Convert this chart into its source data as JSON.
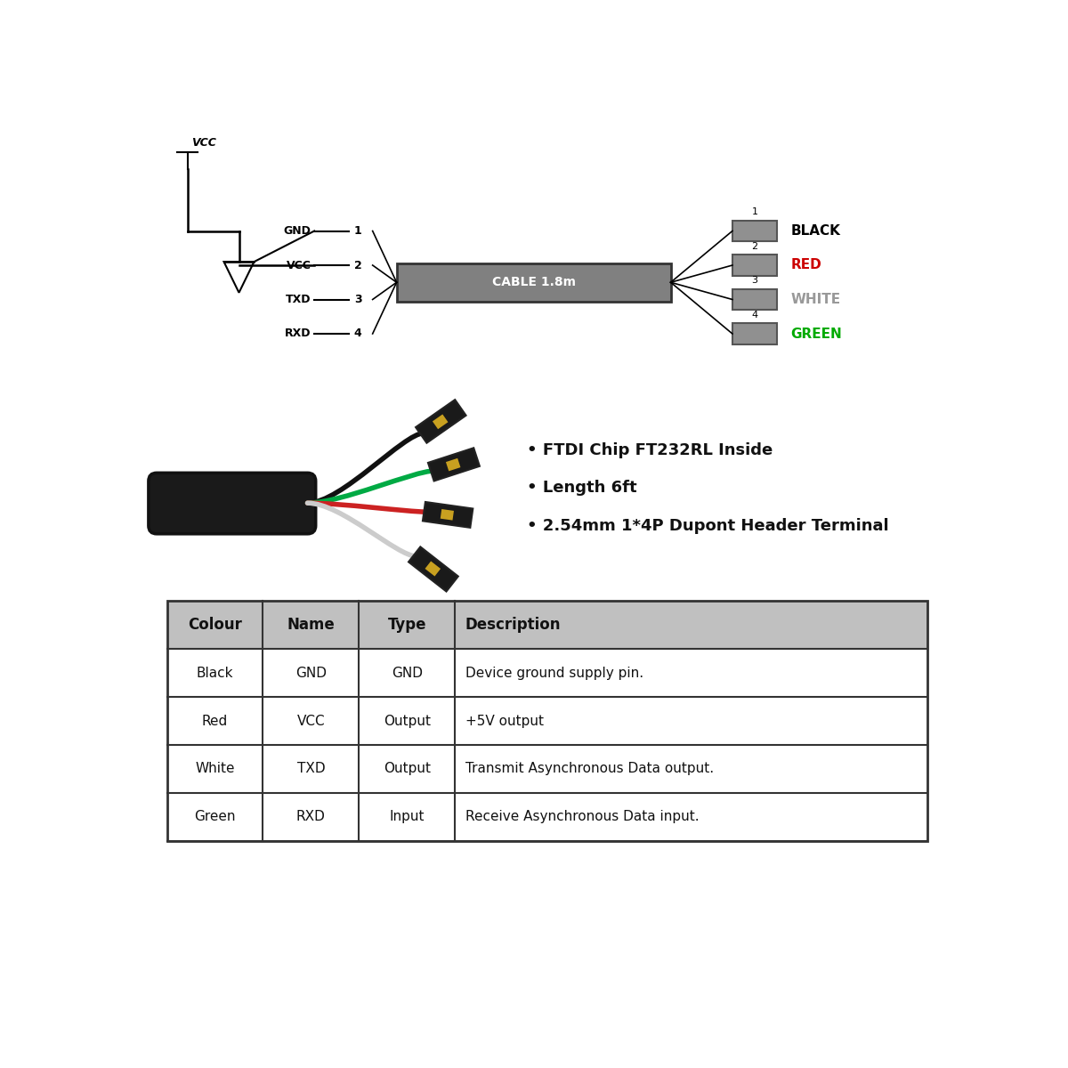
{
  "background_color": "#ffffff",
  "diagram": {
    "vcc_label": "VCC",
    "cable_label": "CABLE 1.8m",
    "left_pins": [
      {
        "num": "1",
        "name": "GND"
      },
      {
        "num": "2",
        "name": "VCC"
      },
      {
        "num": "3",
        "name": "TXD"
      },
      {
        "num": "4",
        "name": "RXD"
      }
    ],
    "right_pins": [
      {
        "num": "1",
        "color_name": "BLACK",
        "color": "#000000"
      },
      {
        "num": "2",
        "color_name": "RED",
        "color": "#cc0000"
      },
      {
        "num": "3",
        "color_name": "WHITE",
        "color": "#999999"
      },
      {
        "num": "4",
        "color_name": "GREEN",
        "color": "#00aa00"
      }
    ],
    "cable_color": "#808080",
    "cable_border": "#333333",
    "connector_color": "#909090",
    "wire_color": "#333333"
  },
  "bullets": [
    "FTDI Chip FT232RL Inside",
    "Length 6ft",
    "2.54mm 1*4P Dupont Header Terminal"
  ],
  "table": {
    "headers": [
      "Colour",
      "Name",
      "Type",
      "Description"
    ],
    "header_bg": "#c0c0c0",
    "rows": [
      [
        "Black",
        "GND",
        "GND",
        "Device ground supply pin."
      ],
      [
        "Red",
        "VCC",
        "Output",
        "+5V output"
      ],
      [
        "White",
        "TXD",
        "Output",
        "Transmit Asynchronous Data output."
      ],
      [
        "Green",
        "RXD",
        "Input",
        "Receive Asynchronous Data input."
      ]
    ],
    "row_bg": "#ffffff",
    "border_color": "#333333"
  }
}
